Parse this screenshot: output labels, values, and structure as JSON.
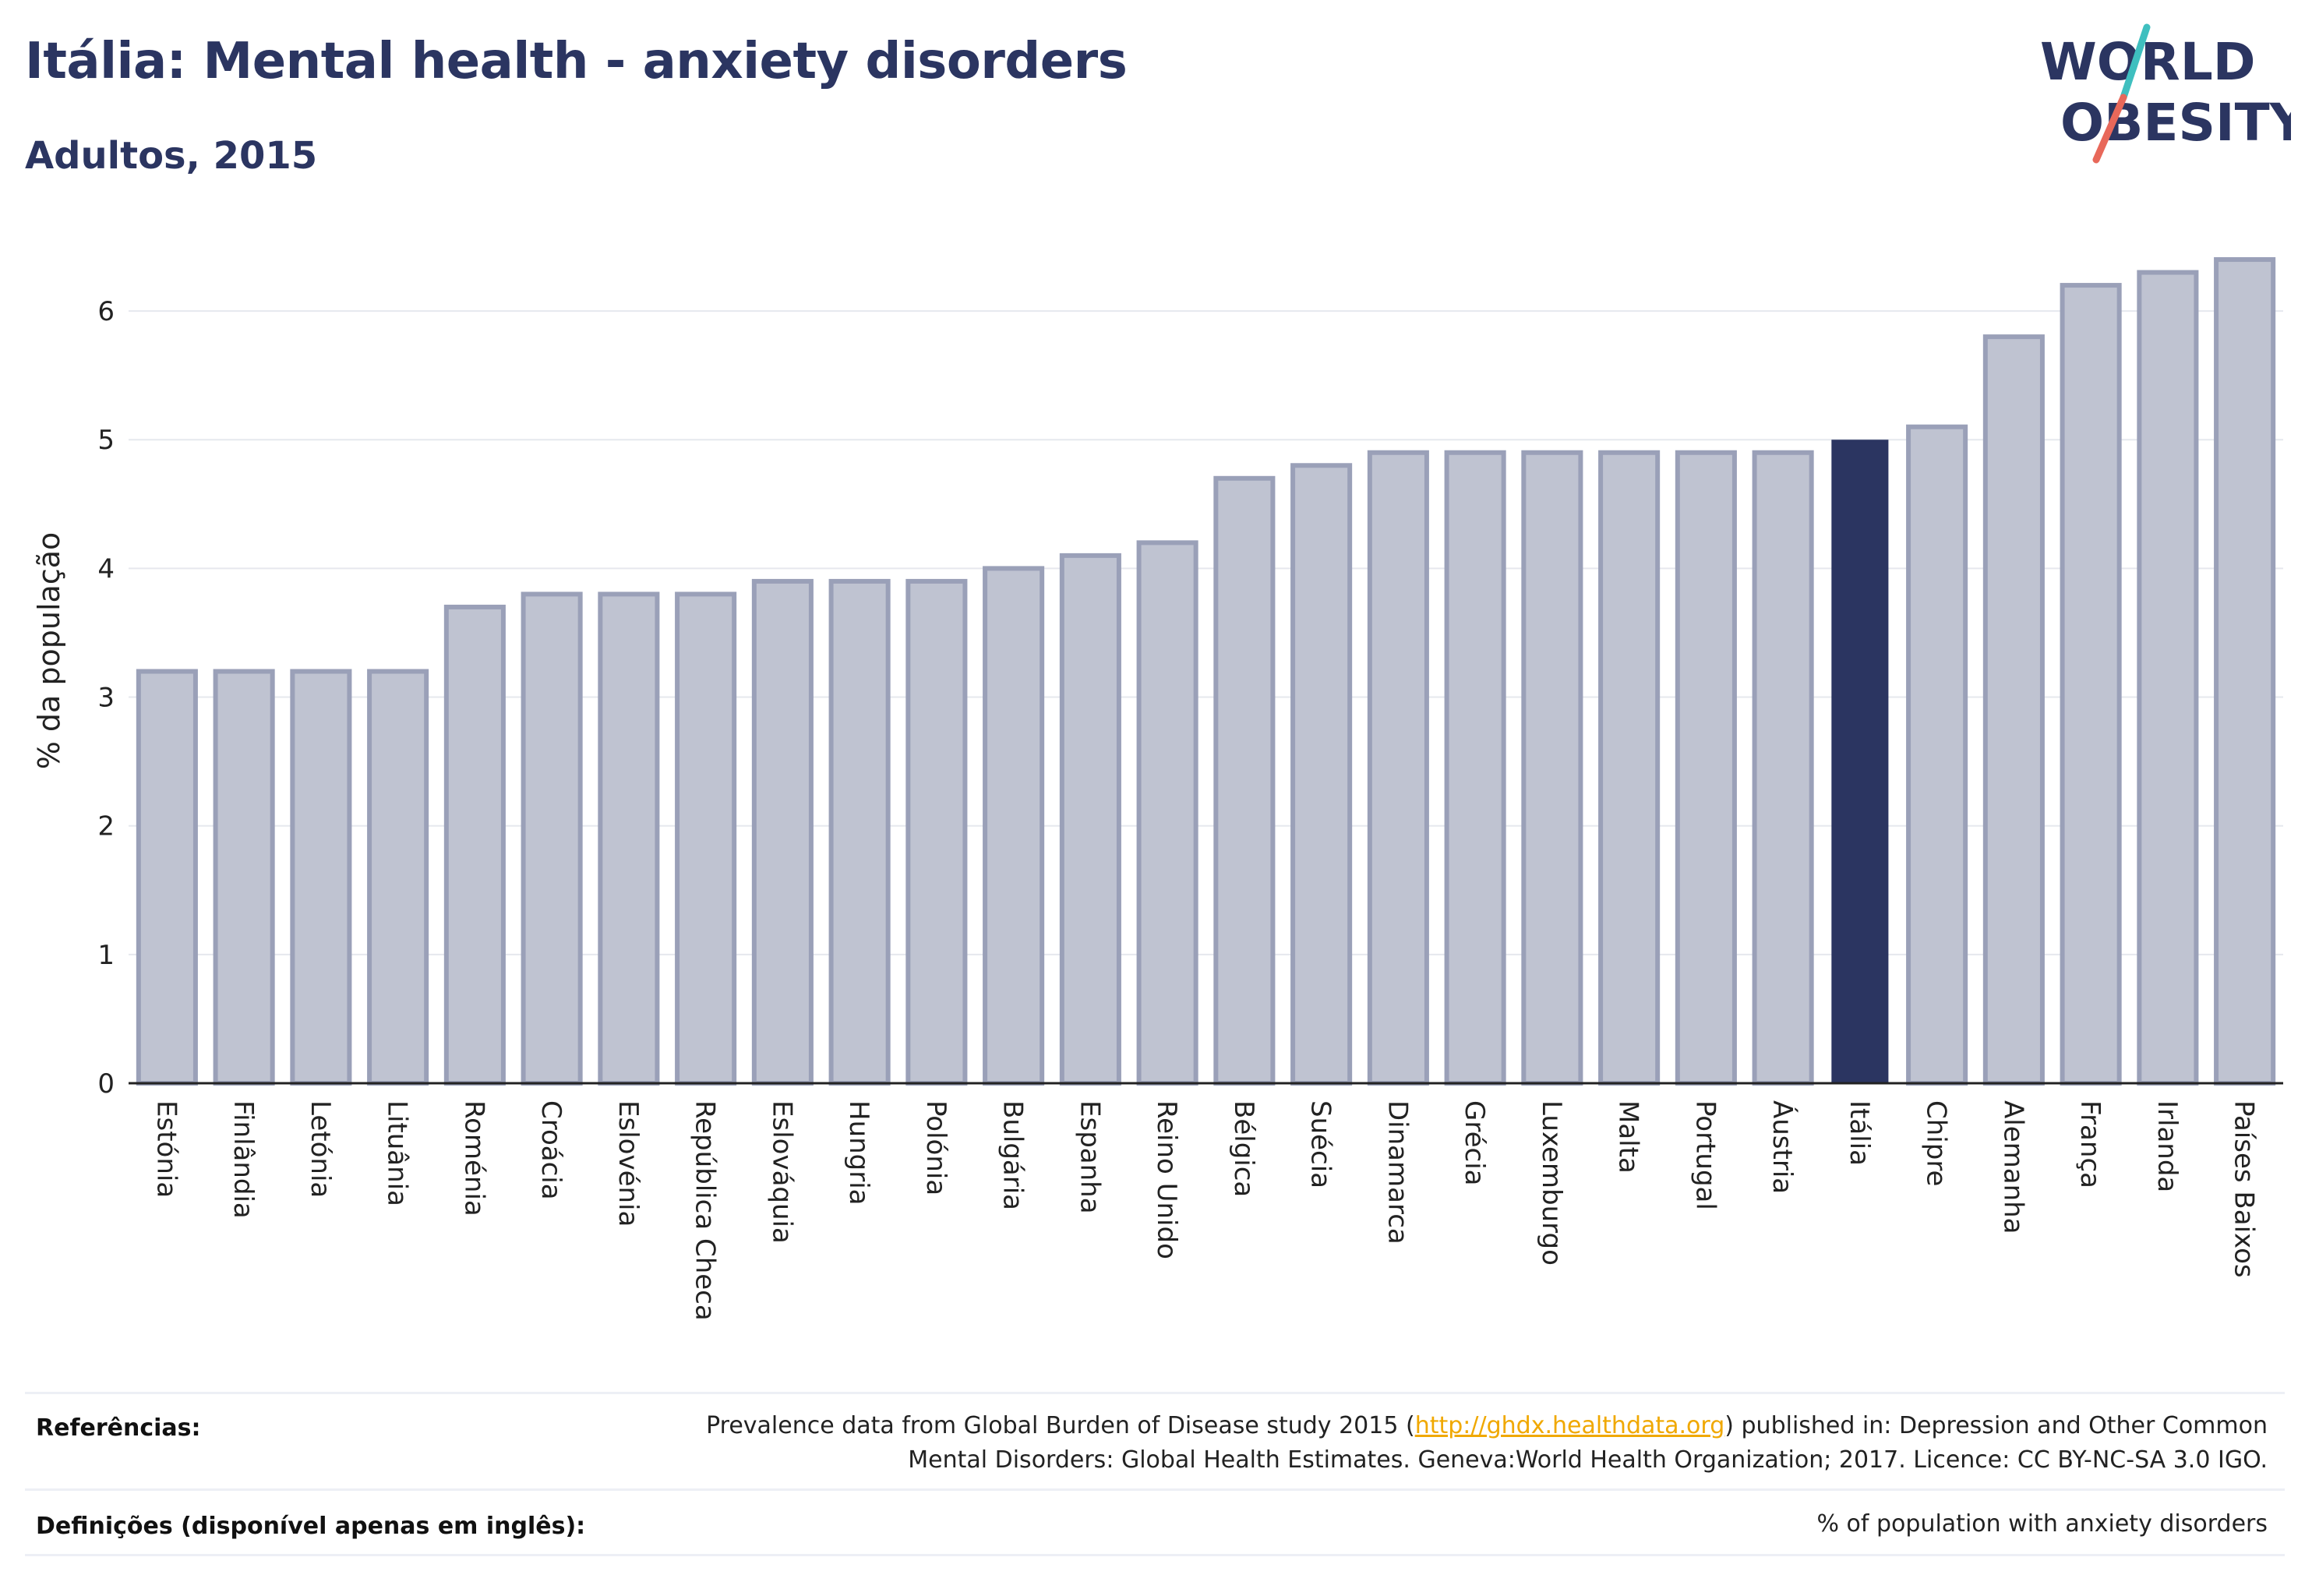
{
  "header": {
    "title": "Itália: Mental health - anxiety disorders",
    "subtitle": "Adultos, 2015"
  },
  "logo": {
    "line1": "WORLD",
    "line2": "OBESITY",
    "accent_teal": "#3fbfbf",
    "accent_coral": "#e8685a"
  },
  "colors": {
    "bar_default_fill": "#bfc3d1",
    "bar_default_stroke": "#9aa0b8",
    "bar_highlight": "#2b3561",
    "grid": "#e6e8ee",
    "axis": "#222222"
  },
  "chart_data": {
    "type": "bar",
    "ylabel": "% da população",
    "ylim": [
      0,
      6.6
    ],
    "yticks": [
      0,
      1,
      2,
      3,
      4,
      5,
      6
    ],
    "grid": true,
    "highlight": "Itália",
    "categories": [
      "Estónia",
      "Finlândia",
      "Letónia",
      "Lituânia",
      "Roménia",
      "Croácia",
      "Eslovénia",
      "República Checa",
      "Eslováquia",
      "Hungria",
      "Polónia",
      "Bulgária",
      "Espanha",
      "Reino Unido",
      "Bélgica",
      "Suécia",
      "Dinamarca",
      "Grécia",
      "Luxemburgo",
      "Malta",
      "Portugal",
      "Áustria",
      "Itália",
      "Chipre",
      "Alemanha",
      "França",
      "Irlanda",
      "Países Baixos"
    ],
    "values": [
      3.2,
      3.2,
      3.2,
      3.2,
      3.7,
      3.8,
      3.8,
      3.8,
      3.9,
      3.9,
      3.9,
      4.0,
      4.1,
      4.2,
      4.7,
      4.8,
      4.9,
      4.9,
      4.9,
      4.9,
      4.9,
      4.9,
      5.0,
      5.1,
      5.8,
      6.2,
      6.3,
      6.4
    ]
  },
  "footer": {
    "references_label": "Referências:",
    "references_line1_before": "Prevalence data from Global Burden of Disease study 2015 (",
    "references_link": "http://ghdx.healthdata.org",
    "references_line1_after": ") published in: Depression and Other Common",
    "references_line2": "Mental Disorders: Global Health Estimates. Geneva:World Health Organization; 2017. Licence: CC BY-NC-SA 3.0 IGO.",
    "definitions_label": "Definições (disponível apenas em inglês):",
    "definitions_text": "% of population with anxiety disorders"
  }
}
